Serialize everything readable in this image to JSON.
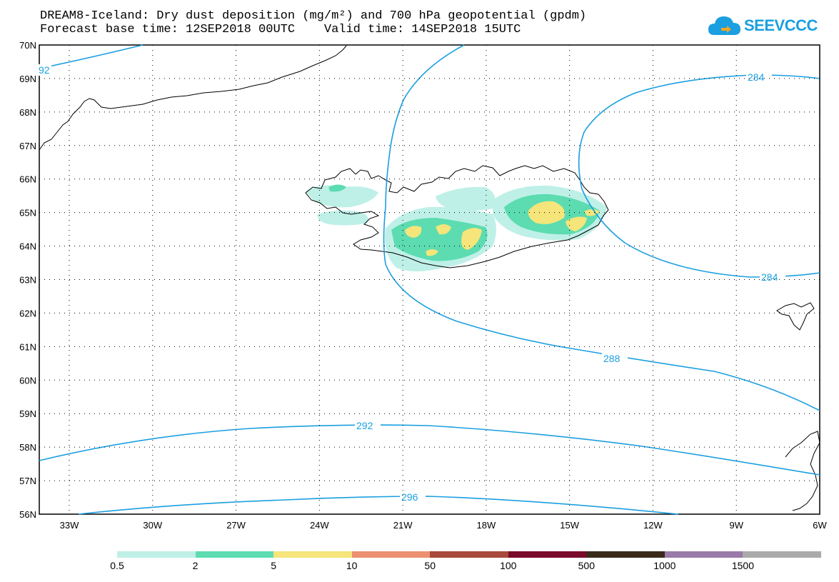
{
  "header": {
    "title_line1": "DREAM8-Iceland: Dry dust deposition (mg/m²) and 700 hPa geopotential (gpdm)",
    "title_line2": "Forecast base time: 12SEP2018 00UTC    Valid time: 14SEP2018 15UTC",
    "logo_text": "SEEVCCC"
  },
  "axes": {
    "lat_labels": [
      "70N",
      "69N",
      "68N",
      "67N",
      "66N",
      "65N",
      "64N",
      "63N",
      "62N",
      "61N",
      "60N",
      "59N",
      "58N",
      "57N",
      "56N"
    ],
    "lon_labels": [
      "33W",
      "30W",
      "27W",
      "24W",
      "21W",
      "18W",
      "15W",
      "12W",
      "9W",
      "6W"
    ]
  },
  "contours": {
    "color": "#1a9fe0",
    "labels": [
      "92",
      "284",
      "284",
      "288",
      "292",
      "296"
    ]
  },
  "legend": {
    "colors": [
      "#bff0e8",
      "#5cdcb0",
      "#f5e57a",
      "#ec9070",
      "#a84a3c",
      "#7a0a2a",
      "#3a2a1a",
      "#9a7aa8",
      "#aaaaaa"
    ],
    "labels": [
      "0.5",
      "2",
      "5",
      "10",
      "50",
      "100",
      "500",
      "1000",
      "1500"
    ]
  }
}
